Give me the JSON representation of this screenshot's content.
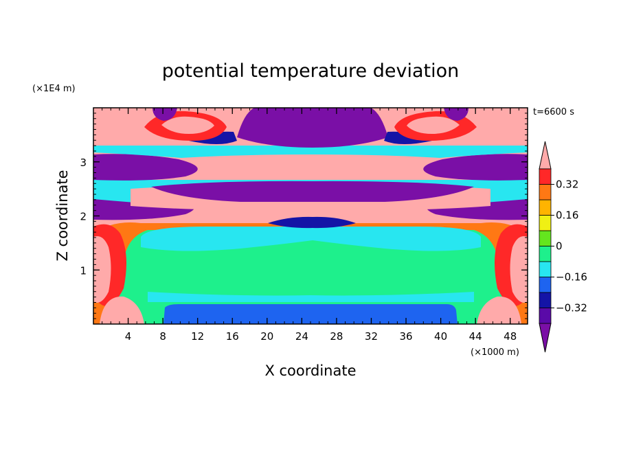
{
  "chart_data": {
    "type": "heatmap",
    "title": "potential temperature deviation",
    "xlabel": "X coordinate",
    "ylabel": "Z coordinate",
    "x_unit": "(×1000 m)",
    "y_unit": "(×1E4 m)",
    "time_label": "t=6600 s",
    "xlim": [
      0,
      50
    ],
    "ylim": [
      0,
      4
    ],
    "x_ticks": [
      4,
      8,
      12,
      16,
      20,
      24,
      28,
      32,
      36,
      40,
      44,
      48
    ],
    "y_ticks": [
      1,
      2,
      3
    ],
    "colorbar": {
      "levels": [
        -0.4,
        -0.32,
        -0.24,
        -0.16,
        -0.08,
        0,
        0.08,
        0.16,
        0.24,
        0.32,
        0.4
      ],
      "labels": [
        "-0.32",
        "-0.16",
        "0",
        "0.16",
        "0.32"
      ],
      "label_values": [
        -0.32,
        -0.16,
        0,
        0.16,
        0.32
      ],
      "colors": [
        "#7a0fa6",
        "#5a0aa8",
        "#1414a6",
        "#1e64f0",
        "#28e6f0",
        "#1ef08c",
        "#64e61e",
        "#f0f014",
        "#ffb400",
        "#ff7814",
        "#ff2828",
        "#ffaaaa"
      ]
    }
  }
}
